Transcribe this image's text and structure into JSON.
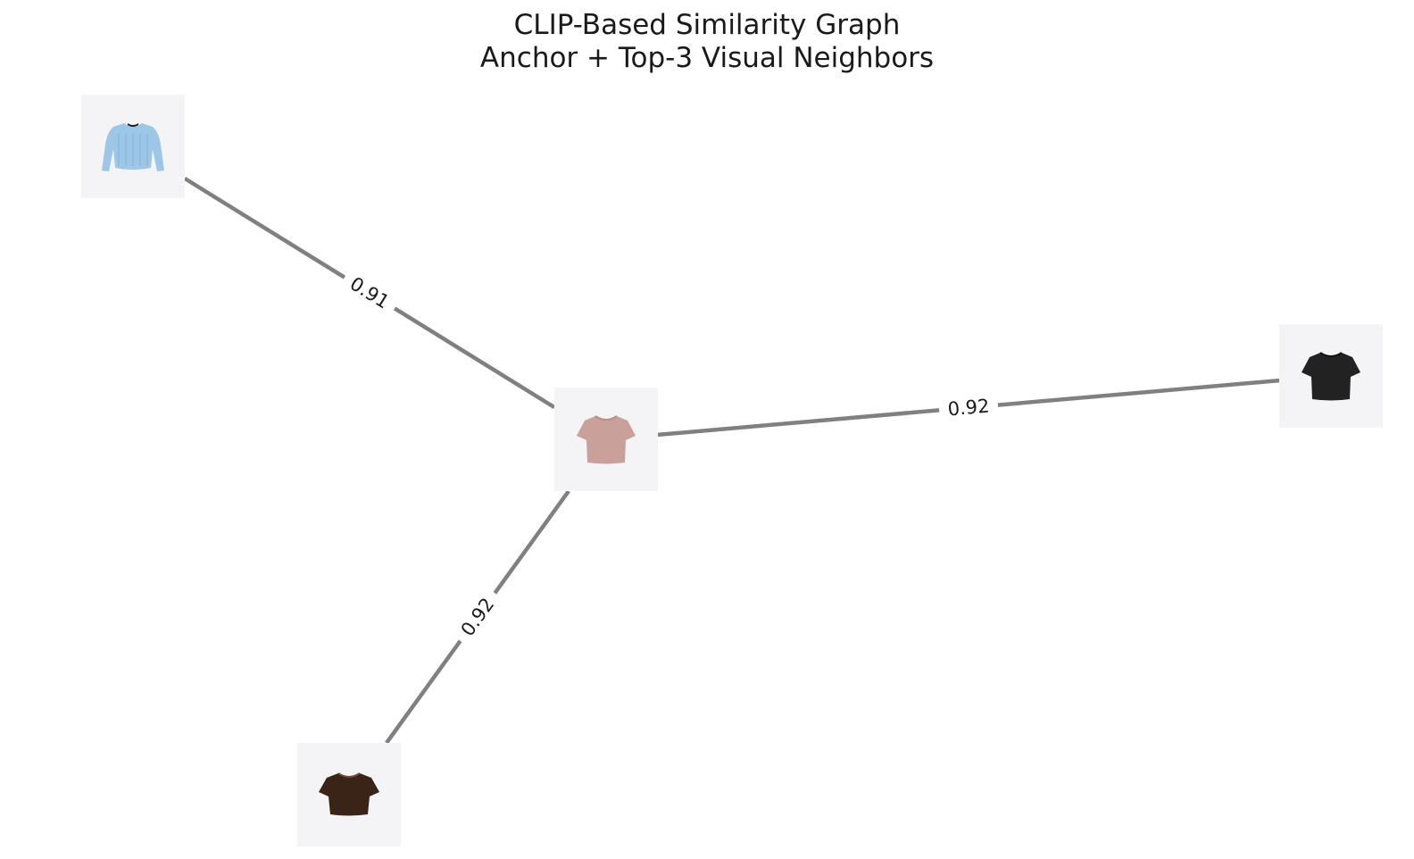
{
  "title": {
    "line1": "CLIP-Based Similarity Graph",
    "line2": "Anchor + Top-3 Visual Neighbors"
  },
  "nodes": [
    {
      "id": "anchor",
      "icon": "pink-tshirt-icon",
      "garment": "tshirt",
      "color": "#c9a09a",
      "shade": "#b98c86"
    },
    {
      "id": "neighbor-1",
      "icon": "light-blue-long-sleeve-crop-top-icon",
      "garment": "longsleeve",
      "color": "#9ec6e6",
      "shade": "#84b2d8"
    },
    {
      "id": "neighbor-2",
      "icon": "black-tshirt-icon",
      "garment": "tshirt",
      "color": "#222222",
      "shade": "#111111"
    },
    {
      "id": "neighbor-3",
      "icon": "dark-brown-crop-tshirt-icon",
      "garment": "crop",
      "color": "#3a2418",
      "shade": "#2a1810"
    }
  ],
  "edges": [
    {
      "from": "anchor",
      "to": "neighbor-1",
      "label": "0.91"
    },
    {
      "from": "anchor",
      "to": "neighbor-2",
      "label": "0.92"
    },
    {
      "from": "anchor",
      "to": "neighbor-3",
      "label": "0.92"
    }
  ]
}
